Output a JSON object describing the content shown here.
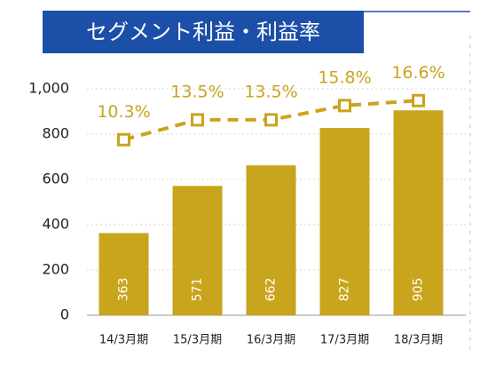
{
  "chart_data": {
    "type": "bar",
    "title": "セグメント利益・利益率",
    "categories": [
      "14/3月期",
      "15/3月期",
      "16/3月期",
      "17/3月期",
      "18/3月期"
    ],
    "series": [
      {
        "type": "bar",
        "color": "#c9a41d",
        "values": [
          363,
          571,
          662,
          827,
          905
        ]
      },
      {
        "type": "line",
        "axis": "y2",
        "color": "#c9a41d",
        "values": [
          10.3,
          13.5,
          13.5,
          15.8,
          16.6
        ],
        "value_labels": [
          "10.3%",
          "13.5%",
          "13.5%",
          "15.8%",
          "16.6%"
        ]
      }
    ],
    "ylim": [
      0,
      1000
    ],
    "yticks": [
      0,
      200,
      400,
      600,
      800,
      {
        "value": 1000,
        "label": "1,000"
      }
    ],
    "y2lim": [
      -18,
      18.5
    ],
    "grid": true
  }
}
